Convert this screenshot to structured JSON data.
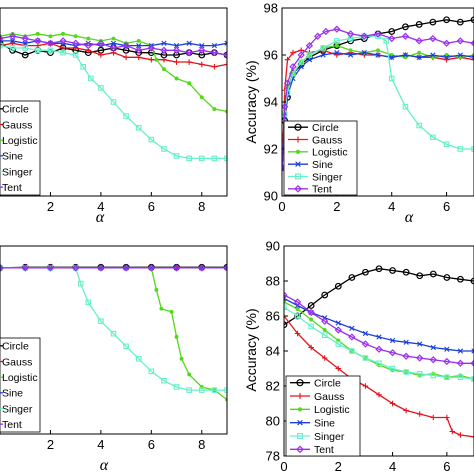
{
  "colors": {
    "Circle": "#000000",
    "Gauss": "#e3141b",
    "Logistic": "#52d91c",
    "Sine": "#1a3fd6",
    "Singer": "#66f0c8",
    "Tent": "#9b2ff0"
  },
  "chart_data": [
    {
      "type": "line",
      "panel": "top-left",
      "xlabel": "α",
      "ylabel": "",
      "xlim": [
        0,
        9
      ],
      "ylim": [
        90,
        98
      ],
      "xticks": [
        2,
        4,
        6,
        8
      ],
      "yticks": [],
      "legend_labels": [
        "Circle",
        "Gauss",
        "Logistic",
        "Sine",
        "Singer",
        "Tent"
      ],
      "legend_position": "bottom-left",
      "grid": false,
      "series": [
        {
          "name": "Circle",
          "marker": "circle",
          "x": [
            0,
            0.5,
            1,
            1.5,
            2,
            2.5,
            3,
            3.5,
            4,
            4.5,
            5,
            5.5,
            6,
            6.5,
            7,
            7.5,
            8,
            8.5,
            9
          ],
          "values": [
            96.5,
            96.2,
            96.0,
            96.2,
            96.1,
            96.3,
            96.2,
            96.1,
            96.2,
            96.3,
            96.2,
            96.1,
            96.1,
            96.0,
            96.0,
            96.1,
            96.0,
            96.1,
            96.0
          ]
        },
        {
          "name": "Gauss",
          "marker": "plus",
          "x": [
            0,
            0.5,
            1,
            1.5,
            2,
            2.5,
            3,
            3.5,
            4,
            4.5,
            5,
            5.5,
            6,
            6.5,
            7,
            7.5,
            8,
            8.5,
            9
          ],
          "values": [
            96.4,
            96.5,
            96.4,
            96.4,
            96.5,
            96.3,
            96.3,
            96.2,
            96.0,
            96.1,
            95.9,
            95.9,
            95.8,
            95.8,
            95.7,
            95.7,
            95.6,
            95.5,
            95.6
          ]
        },
        {
          "name": "Logistic",
          "marker": "dot",
          "x": [
            0,
            0.5,
            1,
            1.5,
            2,
            2.5,
            3,
            3.5,
            4,
            4.5,
            5,
            5.5,
            6,
            6.2,
            6.5,
            7,
            7.5,
            8,
            8.5,
            9
          ],
          "values": [
            96.8,
            96.9,
            96.8,
            96.9,
            96.8,
            96.9,
            96.8,
            96.7,
            96.6,
            96.7,
            96.5,
            96.6,
            96.4,
            95.8,
            95.4,
            95.0,
            94.8,
            94.2,
            93.7,
            93.6
          ]
        },
        {
          "name": "Sine",
          "marker": "x",
          "x": [
            0,
            0.5,
            1,
            1.5,
            2,
            2.5,
            3,
            3.5,
            4,
            4.5,
            5,
            5.5,
            6,
            6.5,
            7,
            7.5,
            8,
            8.5,
            9
          ],
          "values": [
            96.6,
            96.6,
            96.5,
            96.6,
            96.5,
            96.5,
            96.4,
            96.5,
            96.4,
            96.5,
            96.4,
            96.4,
            96.4,
            96.5,
            96.4,
            96.5,
            96.4,
            96.4,
            96.5
          ]
        },
        {
          "name": "Singer",
          "marker": "square",
          "x": [
            0,
            0.5,
            1,
            1.5,
            2,
            2.5,
            3,
            3.3,
            3.6,
            4,
            4.5,
            5,
            5.5,
            6,
            6.5,
            7,
            7.5,
            8,
            8.5,
            9
          ],
          "values": [
            96.4,
            96.3,
            96.3,
            96.2,
            96.2,
            96.1,
            96.0,
            95.5,
            95.0,
            94.6,
            94.0,
            93.4,
            92.9,
            92.4,
            92.0,
            91.7,
            91.6,
            91.6,
            91.6,
            91.6
          ]
        },
        {
          "name": "Tent",
          "marker": "diamond",
          "x": [
            0,
            0.5,
            1,
            1.5,
            2,
            2.5,
            3,
            3.5,
            4,
            4.5,
            5,
            5.5,
            6,
            6.5,
            7,
            7.5,
            8,
            8.5,
            9
          ],
          "values": [
            96.7,
            96.8,
            96.7,
            96.6,
            96.5,
            96.6,
            96.5,
            96.4,
            96.5,
            96.3,
            96.4,
            96.2,
            96.3,
            96.2,
            96.2,
            96.1,
            96.2,
            96.1,
            96.0
          ]
        }
      ]
    },
    {
      "type": "line",
      "panel": "top-right",
      "xlabel": "α",
      "ylabel": "Accuracy (%)",
      "xlim": [
        0,
        7
      ],
      "ylim": [
        90,
        98
      ],
      "xticks": [
        0,
        2,
        4,
        6
      ],
      "yticks": [
        90,
        92,
        94,
        96,
        98
      ],
      "legend_labels": [
        "Circle",
        "Gauss",
        "Logistic",
        "Sine",
        "Singer",
        "Tent"
      ],
      "legend_position": "bottom-left",
      "grid": false,
      "series": [
        {
          "name": "Circle",
          "marker": "circle",
          "x": [
            0,
            0.05,
            0.1,
            0.2,
            0.4,
            0.7,
            1,
            1.5,
            2,
            2.5,
            3,
            3.5,
            4,
            4.5,
            5,
            5.5,
            6,
            6.5,
            7
          ],
          "values": [
            91.2,
            92.0,
            93.2,
            94.2,
            95.2,
            95.6,
            95.9,
            96.2,
            96.4,
            96.6,
            96.7,
            96.9,
            97.0,
            97.2,
            97.3,
            97.4,
            97.5,
            97.4,
            97.5
          ]
        },
        {
          "name": "Gauss",
          "marker": "plus",
          "x": [
            0,
            0.05,
            0.1,
            0.2,
            0.4,
            0.7,
            1,
            1.5,
            2,
            2.5,
            3,
            3.5,
            4,
            4.5,
            5,
            5.5,
            6,
            6.5,
            7
          ],
          "values": [
            91.2,
            92.6,
            94.5,
            95.8,
            96.1,
            96.2,
            96.1,
            96.2,
            96.0,
            96.1,
            96.0,
            96.0,
            95.9,
            96.0,
            95.9,
            95.9,
            95.8,
            95.9,
            95.8
          ]
        },
        {
          "name": "Logistic",
          "marker": "dot",
          "x": [
            0,
            0.05,
            0.1,
            0.2,
            0.4,
            0.7,
            1,
            1.5,
            2,
            2.5,
            3,
            3.5,
            4,
            4.5,
            5,
            5.5,
            6,
            6.5,
            7
          ],
          "values": [
            91.2,
            92.2,
            93.6,
            94.6,
            95.2,
            95.7,
            96.0,
            96.3,
            96.4,
            96.2,
            96.1,
            96.2,
            96.0,
            95.9,
            96.1,
            95.9,
            96.0,
            95.9,
            96.0
          ]
        },
        {
          "name": "Sine",
          "marker": "x",
          "x": [
            0,
            0.05,
            0.1,
            0.2,
            0.4,
            0.7,
            1,
            1.5,
            2,
            2.5,
            3,
            3.5,
            4,
            4.5,
            5,
            5.5,
            6,
            6.5,
            7
          ],
          "values": [
            91.2,
            92.0,
            93.4,
            94.3,
            95.0,
            95.5,
            95.8,
            96.0,
            96.1,
            96.0,
            96.1,
            96.0,
            95.9,
            96.0,
            95.9,
            96.0,
            95.9,
            96.0,
            95.9
          ]
        },
        {
          "name": "Singer",
          "marker": "square",
          "x": [
            0,
            0.05,
            0.1,
            0.2,
            0.4,
            0.7,
            1,
            1.5,
            2,
            2.5,
            3,
            3.5,
            3.8,
            4,
            4.5,
            5,
            5.5,
            6,
            6.5,
            7
          ],
          "values": [
            91.2,
            92.1,
            93.5,
            94.4,
            95.2,
            95.7,
            96.0,
            96.3,
            96.6,
            96.7,
            96.8,
            96.8,
            96.6,
            95.0,
            93.8,
            93.0,
            92.5,
            92.2,
            92.0,
            92.0
          ]
        },
        {
          "name": "Tent",
          "marker": "diamond",
          "x": [
            0,
            0.05,
            0.1,
            0.2,
            0.4,
            0.7,
            1,
            1.3,
            1.6,
            2,
            2.5,
            3,
            3.5,
            4,
            4.5,
            5,
            5.5,
            6,
            6.5,
            7
          ],
          "values": [
            91.2,
            92.2,
            93.8,
            94.8,
            95.5,
            96.0,
            96.4,
            96.8,
            97.0,
            97.1,
            96.9,
            96.8,
            96.9,
            96.7,
            96.8,
            96.6,
            96.7,
            96.5,
            96.6,
            96.5
          ]
        }
      ]
    },
    {
      "type": "line",
      "panel": "bottom-left",
      "xlabel": "α",
      "ylabel": "",
      "xlim": [
        0,
        9
      ],
      "ylim": [
        70,
        100
      ],
      "xticks": [
        2,
        4,
        6,
        8
      ],
      "yticks": [],
      "legend_labels": [
        "Circle",
        "Gauss",
        "Logistic",
        "Sine",
        "Singer",
        "Tent"
      ],
      "legend_position": "bottom-left",
      "grid": false,
      "series": [
        {
          "name": "Circle",
          "marker": "circle",
          "x": [
            0,
            1,
            2,
            3,
            4,
            5,
            6,
            7,
            8,
            9
          ],
          "values": [
            96.5,
            96.6,
            96.6,
            96.6,
            96.6,
            96.6,
            96.6,
            96.6,
            96.6,
            96.6
          ]
        },
        {
          "name": "Gauss",
          "marker": "plus",
          "x": [
            0,
            1,
            2,
            3,
            4,
            5,
            6,
            7,
            8,
            9
          ],
          "values": [
            96.5,
            96.5,
            96.5,
            96.5,
            96.5,
            96.5,
            96.5,
            96.5,
            96.5,
            96.5
          ]
        },
        {
          "name": "Logistic",
          "marker": "dot",
          "x": [
            0,
            1,
            2,
            3,
            4,
            5,
            6,
            6.2,
            6.4,
            6.8,
            7.0,
            7.2,
            7.5,
            8,
            8.5,
            9
          ],
          "values": [
            96.5,
            96.5,
            96.5,
            96.5,
            96.5,
            96.5,
            96.5,
            93.0,
            90.0,
            89.5,
            85.5,
            82.0,
            79.5,
            77.5,
            77.0,
            75.5
          ]
        },
        {
          "name": "Sine",
          "marker": "x",
          "x": [
            0,
            1,
            2,
            3,
            4,
            5,
            6,
            7,
            8,
            9
          ],
          "values": [
            96.5,
            96.5,
            96.5,
            96.5,
            96.5,
            96.5,
            96.5,
            96.5,
            96.5,
            96.5
          ]
        },
        {
          "name": "Singer",
          "marker": "square",
          "x": [
            0,
            1,
            2,
            3,
            3.2,
            3.5,
            4,
            4.5,
            5,
            5.5,
            6,
            6.5,
            7,
            7.5,
            8,
            8.5,
            9
          ],
          "values": [
            96.5,
            96.5,
            96.5,
            96.5,
            94.0,
            91.0,
            88.0,
            86.0,
            84.0,
            82.0,
            80.0,
            78.5,
            77.5,
            77.0,
            77.0,
            77.0,
            77.0
          ]
        },
        {
          "name": "Tent",
          "marker": "diamond",
          "x": [
            0,
            1,
            2,
            3,
            4,
            5,
            6,
            7,
            8,
            9
          ],
          "values": [
            96.5,
            96.5,
            96.5,
            96.5,
            96.5,
            96.5,
            96.5,
            96.5,
            96.5,
            96.5
          ]
        }
      ]
    },
    {
      "type": "line",
      "panel": "bottom-right",
      "xlabel": "α",
      "ylabel": "Accuracy (%)",
      "xlim": [
        0,
        7
      ],
      "ylim": [
        78,
        90
      ],
      "xticks": [
        0,
        2,
        4,
        6
      ],
      "yticks": [
        78,
        80,
        82,
        84,
        86,
        88,
        90
      ],
      "legend_labels": [
        "Circle",
        "Gauss",
        "Logistic",
        "Sine",
        "Singer",
        "Tent"
      ],
      "legend_position": "bottom-left",
      "grid": false,
      "series": [
        {
          "name": "Circle",
          "marker": "circle",
          "x": [
            0,
            0.5,
            1,
            1.5,
            2,
            2.5,
            3,
            3.5,
            4,
            4.5,
            5,
            5.5,
            6,
            6.5,
            7
          ],
          "values": [
            85.5,
            86.0,
            86.6,
            87.2,
            87.7,
            88.2,
            88.5,
            88.7,
            88.6,
            88.5,
            88.3,
            88.4,
            88.2,
            88.1,
            88.0
          ]
        },
        {
          "name": "Gauss",
          "marker": "plus",
          "x": [
            0,
            0.5,
            1,
            1.5,
            2,
            2.5,
            3,
            3.5,
            4,
            4.5,
            5,
            5.5,
            6,
            6.2,
            6.5,
            7
          ],
          "values": [
            86.0,
            85.0,
            84.2,
            83.6,
            83.0,
            82.4,
            82.0,
            81.5,
            81.0,
            80.6,
            80.4,
            80.2,
            80.2,
            79.4,
            79.2,
            79.1
          ]
        },
        {
          "name": "Logistic",
          "marker": "dot",
          "x": [
            0,
            0.5,
            1,
            1.5,
            2,
            2.5,
            3,
            3.5,
            4,
            4.5,
            5,
            5.5,
            6,
            6.5,
            7
          ],
          "values": [
            86.8,
            86.4,
            85.8,
            85.2,
            84.6,
            84.0,
            83.6,
            83.2,
            82.9,
            82.8,
            82.6,
            82.7,
            82.5,
            82.6,
            82.4
          ]
        },
        {
          "name": "Sine",
          "marker": "x",
          "x": [
            0,
            0.5,
            1,
            1.5,
            2,
            2.5,
            3,
            3.5,
            4,
            4.5,
            5,
            5.5,
            6,
            6.5,
            7
          ],
          "values": [
            87.0,
            86.6,
            86.2,
            85.9,
            85.6,
            85.3,
            85.0,
            84.8,
            84.6,
            84.5,
            84.4,
            84.2,
            84.1,
            84.0,
            84.0
          ]
        },
        {
          "name": "Singer",
          "marker": "square",
          "x": [
            0,
            0.5,
            1,
            1.5,
            2,
            2.5,
            3,
            3.5,
            4,
            4.5,
            5,
            5.5,
            6,
            6.5,
            7
          ],
          "values": [
            86.5,
            86.0,
            85.4,
            84.9,
            84.4,
            84.0,
            83.6,
            83.3,
            83.0,
            82.8,
            82.7,
            82.6,
            82.5,
            82.5,
            82.4
          ]
        },
        {
          "name": "Tent",
          "marker": "diamond",
          "x": [
            0,
            0.5,
            1,
            1.5,
            2,
            2.5,
            3,
            3.5,
            4,
            4.5,
            5,
            5.5,
            6,
            6.5,
            7
          ],
          "values": [
            87.2,
            86.8,
            86.2,
            85.7,
            85.2,
            84.8,
            84.4,
            84.1,
            83.9,
            83.7,
            83.6,
            83.5,
            83.4,
            83.3,
            83.3
          ]
        }
      ]
    }
  ]
}
